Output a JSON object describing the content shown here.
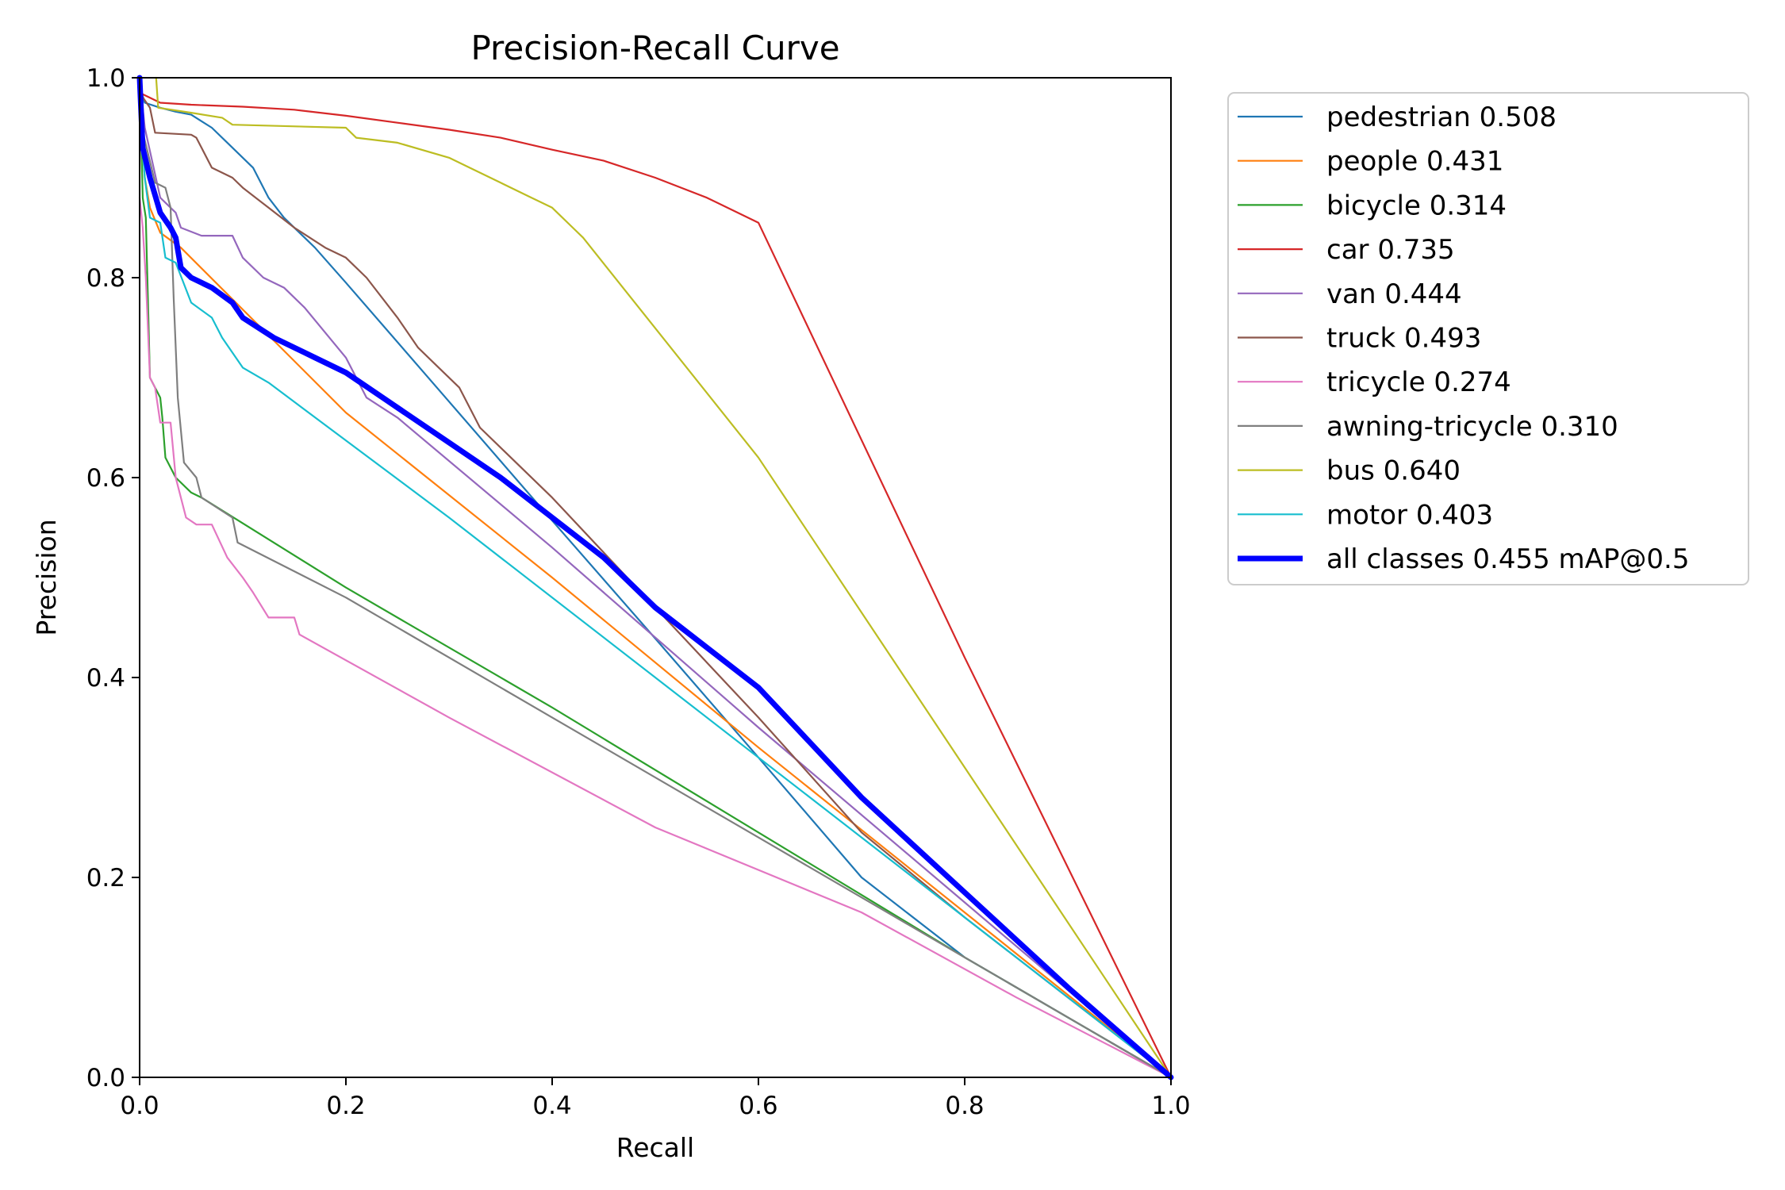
{
  "chart_data": {
    "type": "line",
    "title": "Precision-Recall Curve",
    "xlabel": "Recall",
    "ylabel": "Precision",
    "xlim": [
      0,
      1
    ],
    "ylim": [
      0,
      1
    ],
    "grid": false,
    "legend_position": "outside-right-top",
    "xticks": [
      "0.0",
      "0.2",
      "0.4",
      "0.6",
      "0.8",
      "1.0"
    ],
    "yticks": [
      "0.0",
      "0.2",
      "0.4",
      "0.6",
      "0.8",
      "1.0"
    ],
    "series": [
      {
        "name": "pedestrian 0.508",
        "color": "#1f77b4",
        "width": 2.2,
        "points": [
          [
            0,
            1.0
          ],
          [
            0.002,
            0.985
          ],
          [
            0.005,
            0.975
          ],
          [
            0.02,
            0.97
          ],
          [
            0.035,
            0.966
          ],
          [
            0.05,
            0.963
          ],
          [
            0.07,
            0.95
          ],
          [
            0.09,
            0.93
          ],
          [
            0.11,
            0.91
          ],
          [
            0.125,
            0.88
          ],
          [
            0.14,
            0.86
          ],
          [
            0.16,
            0.84
          ],
          [
            0.17,
            0.83
          ],
          [
            0.2,
            0.795
          ],
          [
            0.3,
            0.676
          ],
          [
            0.4,
            0.557
          ],
          [
            0.5,
            0.439
          ],
          [
            0.6,
            0.32
          ],
          [
            0.7,
            0.2
          ],
          [
            0.8,
            0.12
          ],
          [
            0.9,
            0.06
          ],
          [
            1.0,
            0.0
          ]
        ]
      },
      {
        "name": "people 0.431",
        "color": "#ff7f0e",
        "width": 2.2,
        "points": [
          [
            0,
            0.98
          ],
          [
            0.005,
            0.9
          ],
          [
            0.01,
            0.87
          ],
          [
            0.02,
            0.845
          ],
          [
            0.04,
            0.83
          ],
          [
            0.2,
            0.665
          ],
          [
            0.4,
            0.5
          ],
          [
            0.6,
            0.33
          ],
          [
            0.8,
            0.165
          ],
          [
            1.0,
            0.0
          ]
        ]
      },
      {
        "name": "bicycle 0.314",
        "color": "#2ca02c",
        "width": 2.2,
        "points": [
          [
            0,
            1.0
          ],
          [
            0.003,
            0.88
          ],
          [
            0.006,
            0.86
          ],
          [
            0.01,
            0.7
          ],
          [
            0.015,
            0.69
          ],
          [
            0.02,
            0.68
          ],
          [
            0.022,
            0.66
          ],
          [
            0.025,
            0.62
          ],
          [
            0.03,
            0.61
          ],
          [
            0.035,
            0.6
          ],
          [
            0.05,
            0.585
          ],
          [
            0.06,
            0.58
          ],
          [
            0.2,
            0.49
          ],
          [
            0.4,
            0.37
          ],
          [
            0.6,
            0.245
          ],
          [
            0.8,
            0.12
          ],
          [
            1.0,
            0.0
          ]
        ]
      },
      {
        "name": "car 0.735",
        "color": "#d62728",
        "width": 2.2,
        "points": [
          [
            0,
            0.985
          ],
          [
            0.02,
            0.975
          ],
          [
            0.05,
            0.973
          ],
          [
            0.1,
            0.971
          ],
          [
            0.15,
            0.968
          ],
          [
            0.2,
            0.962
          ],
          [
            0.25,
            0.955
          ],
          [
            0.3,
            0.948
          ],
          [
            0.35,
            0.94
          ],
          [
            0.4,
            0.928
          ],
          [
            0.45,
            0.917
          ],
          [
            0.5,
            0.9
          ],
          [
            0.55,
            0.88
          ],
          [
            0.58,
            0.865
          ],
          [
            0.6,
            0.855
          ],
          [
            0.8,
            0.42
          ],
          [
            1.0,
            0.0
          ]
        ]
      },
      {
        "name": "van 0.444",
        "color": "#9467bd",
        "width": 2.2,
        "points": [
          [
            0,
            1.0
          ],
          [
            0.005,
            0.95
          ],
          [
            0.02,
            0.88
          ],
          [
            0.035,
            0.865
          ],
          [
            0.04,
            0.85
          ],
          [
            0.06,
            0.842
          ],
          [
            0.09,
            0.842
          ],
          [
            0.1,
            0.82
          ],
          [
            0.12,
            0.8
          ],
          [
            0.14,
            0.79
          ],
          [
            0.16,
            0.77
          ],
          [
            0.18,
            0.745
          ],
          [
            0.2,
            0.72
          ],
          [
            0.22,
            0.68
          ],
          [
            0.25,
            0.66
          ],
          [
            0.4,
            0.53
          ],
          [
            0.6,
            0.35
          ],
          [
            0.8,
            0.175
          ],
          [
            1.0,
            0.0
          ]
        ]
      },
      {
        "name": "truck 0.493",
        "color": "#8c564b",
        "width": 2.2,
        "points": [
          [
            0,
            0.985
          ],
          [
            0.01,
            0.97
          ],
          [
            0.015,
            0.945
          ],
          [
            0.05,
            0.943
          ],
          [
            0.055,
            0.94
          ],
          [
            0.07,
            0.91
          ],
          [
            0.09,
            0.9
          ],
          [
            0.1,
            0.89
          ],
          [
            0.125,
            0.87
          ],
          [
            0.15,
            0.85
          ],
          [
            0.18,
            0.83
          ],
          [
            0.2,
            0.82
          ],
          [
            0.22,
            0.8
          ],
          [
            0.25,
            0.76
          ],
          [
            0.27,
            0.73
          ],
          [
            0.29,
            0.71
          ],
          [
            0.31,
            0.69
          ],
          [
            0.33,
            0.65
          ],
          [
            0.4,
            0.58
          ],
          [
            0.5,
            0.47
          ],
          [
            0.6,
            0.36
          ],
          [
            0.7,
            0.245
          ],
          [
            0.8,
            0.16
          ],
          [
            0.9,
            0.08
          ],
          [
            1.0,
            0.0
          ]
        ]
      },
      {
        "name": "tricycle 0.274",
        "color": "#e377c2",
        "width": 2.2,
        "points": [
          [
            0,
            0.88
          ],
          [
            0.003,
            0.85
          ],
          [
            0.006,
            0.8
          ],
          [
            0.01,
            0.7
          ],
          [
            0.015,
            0.69
          ],
          [
            0.02,
            0.655
          ],
          [
            0.03,
            0.655
          ],
          [
            0.035,
            0.6
          ],
          [
            0.045,
            0.56
          ],
          [
            0.055,
            0.553
          ],
          [
            0.07,
            0.553
          ],
          [
            0.085,
            0.52
          ],
          [
            0.1,
            0.5
          ],
          [
            0.11,
            0.485
          ],
          [
            0.125,
            0.46
          ],
          [
            0.15,
            0.46
          ],
          [
            0.155,
            0.443
          ],
          [
            0.3,
            0.36
          ],
          [
            0.5,
            0.25
          ],
          [
            0.7,
            0.165
          ],
          [
            0.85,
            0.08
          ],
          [
            1.0,
            0.0
          ]
        ]
      },
      {
        "name": "awning-tricycle 0.310",
        "color": "#7f7f7f",
        "width": 2.2,
        "points": [
          [
            0,
            0.97
          ],
          [
            0.002,
            0.95
          ],
          [
            0.015,
            0.895
          ],
          [
            0.025,
            0.89
          ],
          [
            0.03,
            0.87
          ],
          [
            0.033,
            0.78
          ],
          [
            0.037,
            0.68
          ],
          [
            0.043,
            0.615
          ],
          [
            0.055,
            0.6
          ],
          [
            0.06,
            0.58
          ],
          [
            0.09,
            0.56
          ],
          [
            0.095,
            0.535
          ],
          [
            0.2,
            0.48
          ],
          [
            0.4,
            0.36
          ],
          [
            0.6,
            0.24
          ],
          [
            0.8,
            0.12
          ],
          [
            1.0,
            0.0
          ]
        ]
      },
      {
        "name": "bus 0.640",
        "color": "#bcbd22",
        "width": 2.2,
        "points": [
          [
            0.016,
            1.0
          ],
          [
            0.018,
            0.97
          ],
          [
            0.05,
            0.965
          ],
          [
            0.08,
            0.96
          ],
          [
            0.09,
            0.953
          ],
          [
            0.2,
            0.95
          ],
          [
            0.21,
            0.94
          ],
          [
            0.25,
            0.935
          ],
          [
            0.3,
            0.92
          ],
          [
            0.32,
            0.91
          ],
          [
            0.35,
            0.895
          ],
          [
            0.38,
            0.88
          ],
          [
            0.4,
            0.87
          ],
          [
            0.42,
            0.85
          ],
          [
            0.43,
            0.84
          ],
          [
            0.6,
            0.62
          ],
          [
            0.8,
            0.31
          ],
          [
            1.0,
            0.0
          ]
        ]
      },
      {
        "name": "motor 0.403",
        "color": "#17becf",
        "width": 2.2,
        "points": [
          [
            0,
            0.97
          ],
          [
            0.005,
            0.9
          ],
          [
            0.01,
            0.86
          ],
          [
            0.02,
            0.855
          ],
          [
            0.025,
            0.82
          ],
          [
            0.035,
            0.815
          ],
          [
            0.05,
            0.775
          ],
          [
            0.07,
            0.76
          ],
          [
            0.08,
            0.74
          ],
          [
            0.1,
            0.71
          ],
          [
            0.125,
            0.695
          ],
          [
            0.3,
            0.56
          ],
          [
            0.5,
            0.4
          ],
          [
            0.7,
            0.24
          ],
          [
            0.85,
            0.12
          ],
          [
            1.0,
            0.0
          ]
        ]
      },
      {
        "name": "all classes 0.455 mAP@0.5",
        "color": "#0000ff",
        "width": 7,
        "points": [
          [
            0,
            1.0
          ],
          [
            0.003,
            0.93
          ],
          [
            0.01,
            0.9
          ],
          [
            0.02,
            0.865
          ],
          [
            0.03,
            0.85
          ],
          [
            0.035,
            0.84
          ],
          [
            0.04,
            0.81
          ],
          [
            0.05,
            0.8
          ],
          [
            0.07,
            0.79
          ],
          [
            0.09,
            0.775
          ],
          [
            0.1,
            0.76
          ],
          [
            0.13,
            0.74
          ],
          [
            0.17,
            0.72
          ],
          [
            0.2,
            0.705
          ],
          [
            0.25,
            0.67
          ],
          [
            0.3,
            0.635
          ],
          [
            0.35,
            0.6
          ],
          [
            0.4,
            0.56
          ],
          [
            0.45,
            0.52
          ],
          [
            0.5,
            0.47
          ],
          [
            0.6,
            0.39
          ],
          [
            0.7,
            0.28
          ],
          [
            0.8,
            0.185
          ],
          [
            0.9,
            0.09
          ],
          [
            1.0,
            0.0
          ]
        ]
      }
    ]
  }
}
